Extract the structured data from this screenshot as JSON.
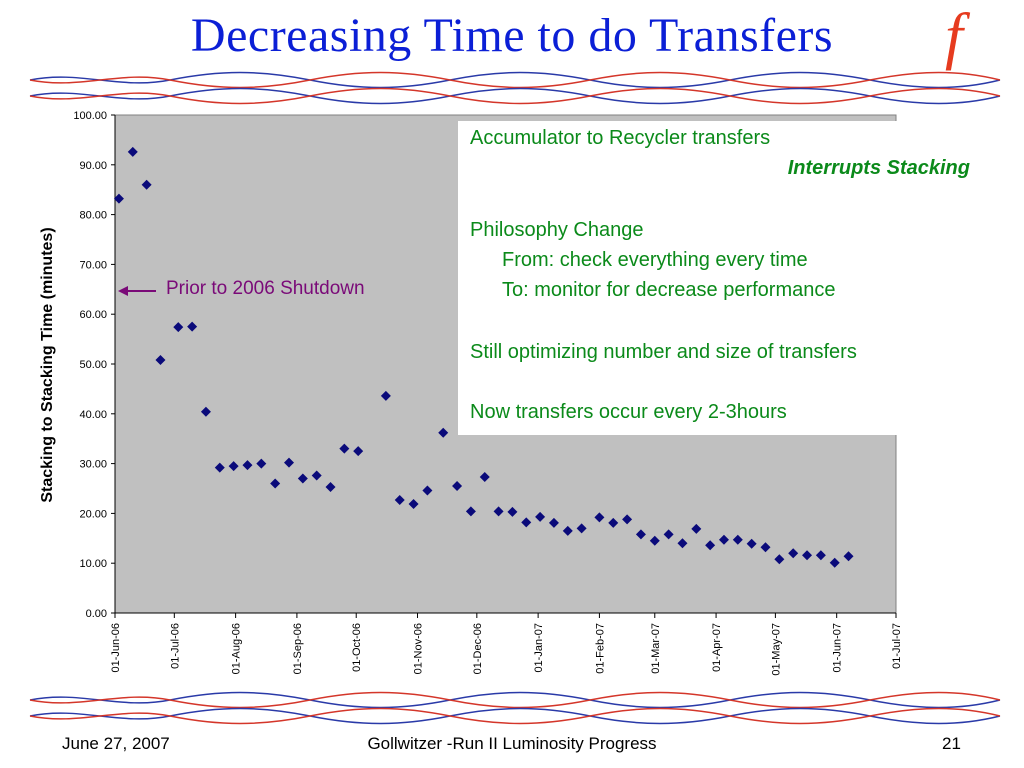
{
  "slide": {
    "title": "Decreasing Time to do Transfers",
    "logo_letter": "f",
    "footer_date": "June 27, 2007",
    "footer_center": "Gollwitzer -Run II Luminosity Progress",
    "page_number": "21",
    "colors": {
      "title": "#0b1fd6",
      "logo": "#e63b1f",
      "notes": "#0b8a1a",
      "annotation": "#7a0a78",
      "marker": "#0a0a7a",
      "plot_bg": "#c0c0c0"
    }
  },
  "notes": {
    "line1": "Accumulator to Recycler transfers",
    "line2": "Interrupts Stacking",
    "line3": "Philosophy Change",
    "line4": "From: check everything every time",
    "line5": "To: monitor for decrease performance",
    "line6": "Still optimizing number and size of transfers",
    "line7": "Now transfers occur every 2-3hours"
  },
  "annotation": {
    "text": "Prior to 2006 Shutdown"
  },
  "chart_data": {
    "type": "scatter",
    "ylabel": "Stacking to Stacking Time (minutes)",
    "ylim": [
      0,
      100
    ],
    "yticks": [
      "0.00",
      "10.00",
      "20.00",
      "30.00",
      "40.00",
      "50.00",
      "60.00",
      "70.00",
      "80.00",
      "90.00",
      "100.00"
    ],
    "xlim": [
      "2006-06-01",
      "2007-07-01"
    ],
    "xticks": [
      "01-Jun-06",
      "01-Jul-06",
      "01-Aug-06",
      "01-Sep-06",
      "01-Oct-06",
      "01-Nov-06",
      "01-Dec-06",
      "01-Jan-07",
      "01-Feb-07",
      "01-Mar-07",
      "01-Apr-07",
      "01-May-07",
      "01-Jun-07",
      "01-Jul-07"
    ],
    "xtick_dates": [
      "2006-06-01",
      "2006-07-01",
      "2006-08-01",
      "2006-09-01",
      "2006-10-01",
      "2006-11-01",
      "2006-12-01",
      "2007-01-01",
      "2007-02-01",
      "2007-03-01",
      "2007-04-01",
      "2007-05-01",
      "2007-06-01",
      "2007-07-01"
    ],
    "grid": false,
    "points": [
      {
        "x": "2006-06-03",
        "y": 83.2
      },
      {
        "x": "2006-06-10",
        "y": 92.6
      },
      {
        "x": "2006-06-17",
        "y": 86.0
      },
      {
        "x": "2006-06-24",
        "y": 50.8
      },
      {
        "x": "2006-07-03",
        "y": 57.4
      },
      {
        "x": "2006-07-10",
        "y": 57.5
      },
      {
        "x": "2006-07-17",
        "y": 40.4
      },
      {
        "x": "2006-07-24",
        "y": 29.2
      },
      {
        "x": "2006-07-31",
        "y": 29.5
      },
      {
        "x": "2006-08-07",
        "y": 29.7
      },
      {
        "x": "2006-08-14",
        "y": 30.0
      },
      {
        "x": "2006-08-21",
        "y": 26.0
      },
      {
        "x": "2006-08-28",
        "y": 30.2
      },
      {
        "x": "2006-09-04",
        "y": 27.0
      },
      {
        "x": "2006-09-11",
        "y": 27.6
      },
      {
        "x": "2006-09-18",
        "y": 25.3
      },
      {
        "x": "2006-09-25",
        "y": 33.0
      },
      {
        "x": "2006-10-02",
        "y": 32.5
      },
      {
        "x": "2006-10-16",
        "y": 43.6
      },
      {
        "x": "2006-10-23",
        "y": 22.7
      },
      {
        "x": "2006-10-30",
        "y": 21.9
      },
      {
        "x": "2006-11-06",
        "y": 24.6
      },
      {
        "x": "2006-11-14",
        "y": 36.2
      },
      {
        "x": "2006-11-21",
        "y": 25.5
      },
      {
        "x": "2006-11-28",
        "y": 20.4
      },
      {
        "x": "2006-12-05",
        "y": 27.3
      },
      {
        "x": "2006-12-12",
        "y": 20.4
      },
      {
        "x": "2006-12-19",
        "y": 20.3
      },
      {
        "x": "2006-12-26",
        "y": 18.2
      },
      {
        "x": "2007-01-02",
        "y": 19.3
      },
      {
        "x": "2007-01-09",
        "y": 18.1
      },
      {
        "x": "2007-01-16",
        "y": 16.5
      },
      {
        "x": "2007-01-23",
        "y": 17.0
      },
      {
        "x": "2007-02-01",
        "y": 19.2
      },
      {
        "x": "2007-02-08",
        "y": 18.1
      },
      {
        "x": "2007-02-15",
        "y": 18.8
      },
      {
        "x": "2007-02-22",
        "y": 15.8
      },
      {
        "x": "2007-03-01",
        "y": 14.5
      },
      {
        "x": "2007-03-08",
        "y": 15.8
      },
      {
        "x": "2007-03-15",
        "y": 14.0
      },
      {
        "x": "2007-03-22",
        "y": 16.9
      },
      {
        "x": "2007-03-29",
        "y": 13.6
      },
      {
        "x": "2007-04-05",
        "y": 14.7
      },
      {
        "x": "2007-04-12",
        "y": 14.7
      },
      {
        "x": "2007-04-19",
        "y": 13.9
      },
      {
        "x": "2007-04-26",
        "y": 13.2
      },
      {
        "x": "2007-05-03",
        "y": 10.8
      },
      {
        "x": "2007-05-10",
        "y": 12.0
      },
      {
        "x": "2007-05-17",
        "y": 11.6
      },
      {
        "x": "2007-05-24",
        "y": 11.6
      },
      {
        "x": "2007-05-31",
        "y": 10.1
      },
      {
        "x": "2007-06-07",
        "y": 11.4
      }
    ]
  }
}
